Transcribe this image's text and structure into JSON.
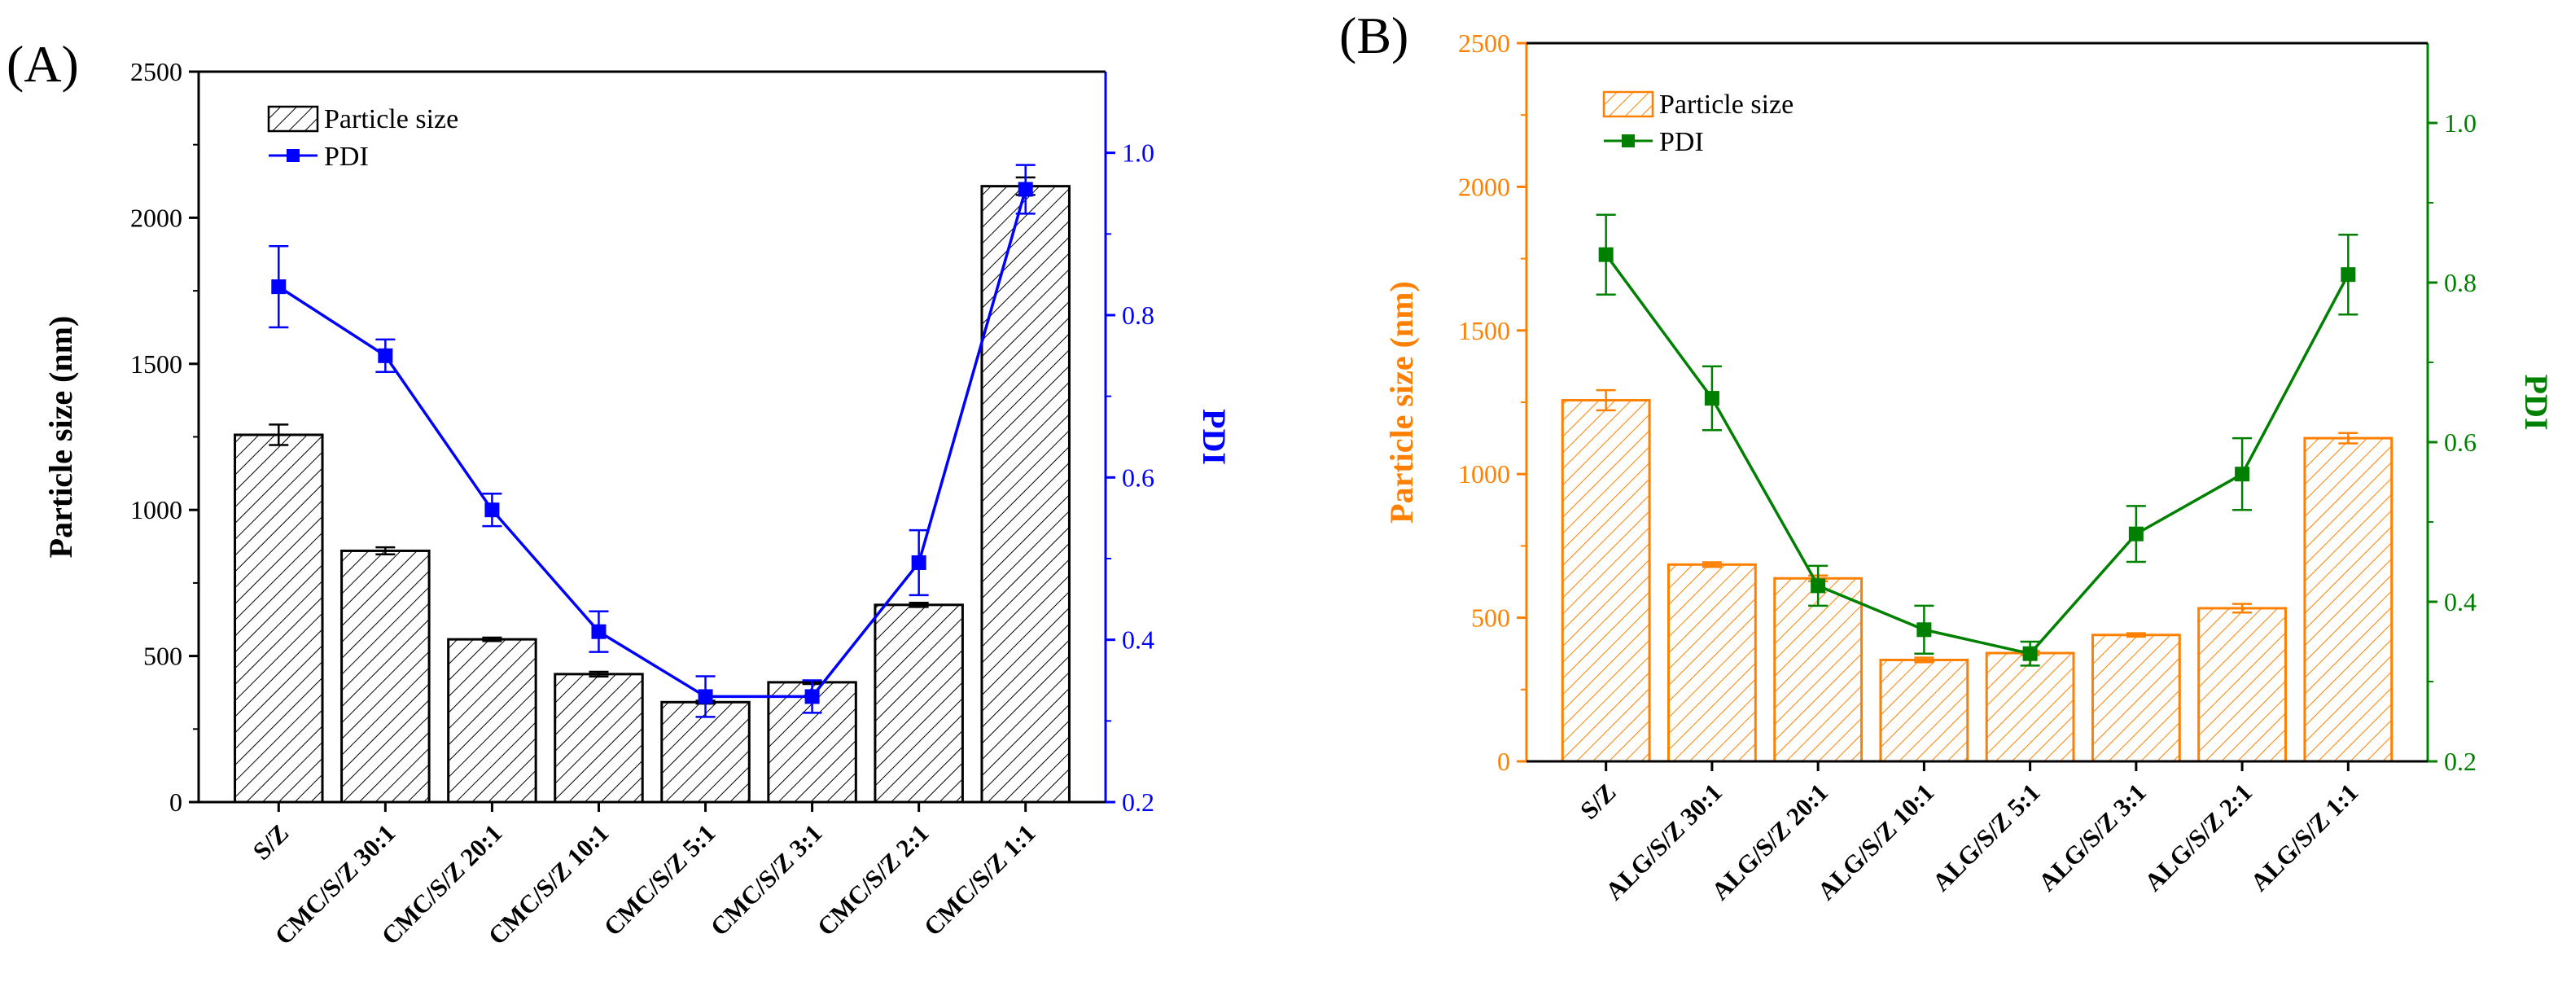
{
  "chart_data": [
    {
      "panel_label": "(A)",
      "type": "bar+line",
      "bar_color": "#000000",
      "line_color": "#0000ff",
      "left_axis_color": "#000000",
      "right_axis_color": "#0000ff",
      "ylabel": "Particle size (nm)",
      "y2label": "PDI",
      "ylim": [
        0,
        2500
      ],
      "y2lim": [
        0.2,
        1.1
      ],
      "yticks": [
        0,
        500,
        1000,
        1500,
        2000,
        2500
      ],
      "y2ticks": [
        0.2,
        0.4,
        0.6,
        0.8,
        1.0
      ],
      "categories": [
        "S/Z",
        "CMC/S/Z 30:1",
        "CMC/S/Z 20:1",
        "CMC/S/Z 10:1",
        "CMC/S/Z 5:1",
        "CMC/S/Z 3:1",
        "CMC/S/Z 2:1",
        "CMC/S/Z 1:1"
      ],
      "legend": [
        "Particle size",
        "PDI"
      ],
      "legend_position": "top-left",
      "series": [
        {
          "name": "Particle size",
          "kind": "bar",
          "values": [
            1257,
            860,
            557,
            438,
            342,
            410,
            675,
            2108
          ],
          "errors": [
            35,
            12,
            6,
            8,
            5,
            6,
            7,
            30
          ]
        },
        {
          "name": "PDI",
          "kind": "line",
          "values": [
            0.835,
            0.75,
            0.56,
            0.41,
            0.33,
            0.33,
            0.495,
            0.955
          ],
          "errors": [
            0.05,
            0.02,
            0.02,
            0.025,
            0.025,
            0.02,
            0.04,
            0.03
          ]
        }
      ]
    },
    {
      "panel_label": "(B)",
      "type": "bar+line",
      "bar_color": "#ff8000",
      "line_color": "#008000",
      "left_axis_color": "#ff8000",
      "right_axis_color": "#008000",
      "ylabel": "Particle size (nm)",
      "y2label": "PDI",
      "ylim": [
        0,
        2500
      ],
      "y2lim": [
        0.2,
        1.1
      ],
      "yticks": [
        0,
        500,
        1000,
        1500,
        2000,
        2500
      ],
      "y2ticks": [
        0.2,
        0.4,
        0.6,
        0.8,
        1.0
      ],
      "categories": [
        "S/Z",
        "ALG/S/Z 30:1",
        "ALG/S/Z 20:1",
        "ALG/S/Z 10:1",
        "ALG/S/Z 5:1",
        "ALG/S/Z 3:1",
        "ALG/S/Z 2:1",
        "ALG/S/Z 1:1"
      ],
      "legend": [
        "Particle size",
        "PDI"
      ],
      "legend_position": "top-left",
      "series": [
        {
          "name": "Particle size",
          "kind": "bar",
          "values": [
            1257,
            685,
            637,
            353,
            377,
            440,
            533,
            1125
          ],
          "errors": [
            35,
            8,
            10,
            8,
            7,
            6,
            15,
            18
          ]
        },
        {
          "name": "PDI",
          "kind": "line",
          "values": [
            0.835,
            0.655,
            0.42,
            0.365,
            0.335,
            0.485,
            0.56,
            0.81
          ],
          "errors": [
            0.05,
            0.04,
            0.025,
            0.03,
            0.015,
            0.035,
            0.045,
            0.05
          ]
        }
      ]
    }
  ]
}
